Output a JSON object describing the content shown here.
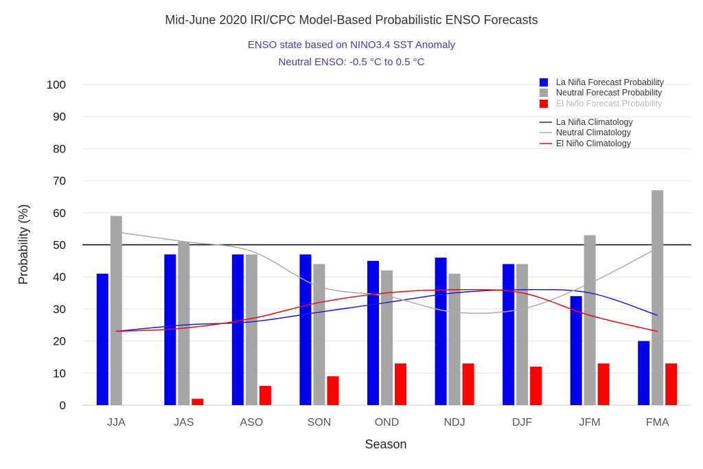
{
  "chart_data": {
    "type": "bar",
    "title": "Mid-June 2020 IRI/CPC Model-Based Probabilistic ENSO Forecasts",
    "subtitle_lines": [
      "ENSO state based on NINO3.4 SST Anomaly",
      "Neutral ENSO: -0.5 °C to 0.5 °C"
    ],
    "xlabel": "Season",
    "ylabel": "Probability (%)",
    "ylim": [
      0,
      100
    ],
    "yticks": [
      0,
      10,
      20,
      30,
      40,
      50,
      60,
      70,
      80,
      90,
      100
    ],
    "reference_line": 50,
    "categories": [
      "JJA",
      "JAS",
      "ASO",
      "SON",
      "OND",
      "NDJ",
      "DJF",
      "JFM",
      "FMA"
    ],
    "series": [
      {
        "name": "La Niña Forecast Probability",
        "color": "#0000ee",
        "values": [
          41,
          47,
          47,
          47,
          45,
          46,
          44,
          34,
          20
        ]
      },
      {
        "name": "Neutral Forecast Probability",
        "color": "#a6a6a6",
        "values": [
          59,
          51,
          47,
          44,
          42,
          41,
          44,
          53,
          67
        ]
      },
      {
        "name": "El Niño Forecast Probability",
        "color": "#ff0000",
        "values": [
          0,
          2,
          6,
          9,
          13,
          13,
          12,
          13,
          13
        ]
      }
    ],
    "lines": [
      {
        "name": "La Niña Climatology",
        "color": "#1a1ae0",
        "values": [
          23,
          25,
          26,
          29,
          32,
          35,
          36,
          35,
          28
        ]
      },
      {
        "name": "Neutral Climatology",
        "color": "#aaaaaa",
        "values": [
          54,
          51,
          48,
          37,
          34,
          29,
          30,
          38,
          49
        ]
      },
      {
        "name": "El Niño Climatology",
        "color": "#e01010",
        "values": [
          23,
          24,
          27,
          32,
          35,
          36,
          35,
          28,
          23
        ]
      }
    ],
    "legend_position": "top-right",
    "grid": true
  }
}
